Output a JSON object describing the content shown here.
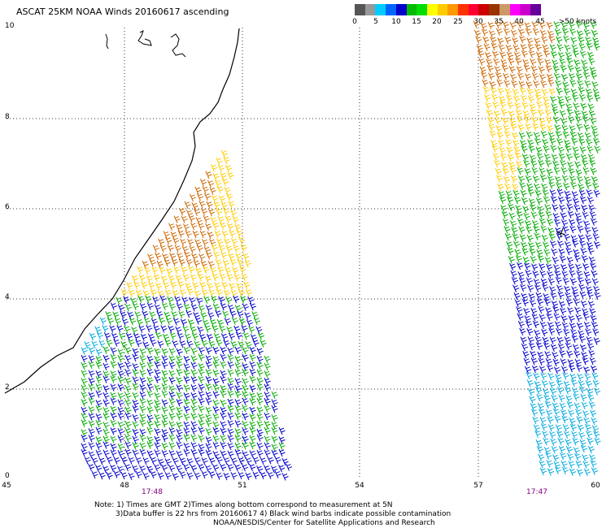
{
  "title": "ASCAT 25KM NOAA Winds 20160617 ascending",
  "colorbar": {
    "colors": [
      "#555555",
      "#999999",
      "#00ccff",
      "#0066ff",
      "#0000cc",
      "#00bb00",
      "#00dd00",
      "#ffff00",
      "#ffcc00",
      "#ff9900",
      "#ff3300",
      "#ff0033",
      "#cc0000",
      "#993300",
      "#cc9966",
      "#ff00ff",
      "#cc00cc",
      "#660099"
    ],
    "labels": [
      "0",
      "5",
      "10",
      "15",
      "20",
      "25",
      "30",
      "35",
      "40",
      "45",
      ">50 knots"
    ]
  },
  "y_ticks": [
    "10",
    "8",
    "6",
    "4",
    "2",
    "0"
  ],
  "x_ticks": [
    "45",
    "48",
    "51",
    "54",
    "57",
    "60"
  ],
  "times": {
    "left": "17:48",
    "right": "17:47"
  },
  "notes": [
    "Note: 1) Times are GMT 2)Times along bottom correspond to measurement at 5N",
    "3)Data buffer is 22 hrs from 20160617 4) Black wind barbs indicate possible contamination",
    "NOAA/NESDIS/Center for Satellite Applications and Research"
  ]
}
